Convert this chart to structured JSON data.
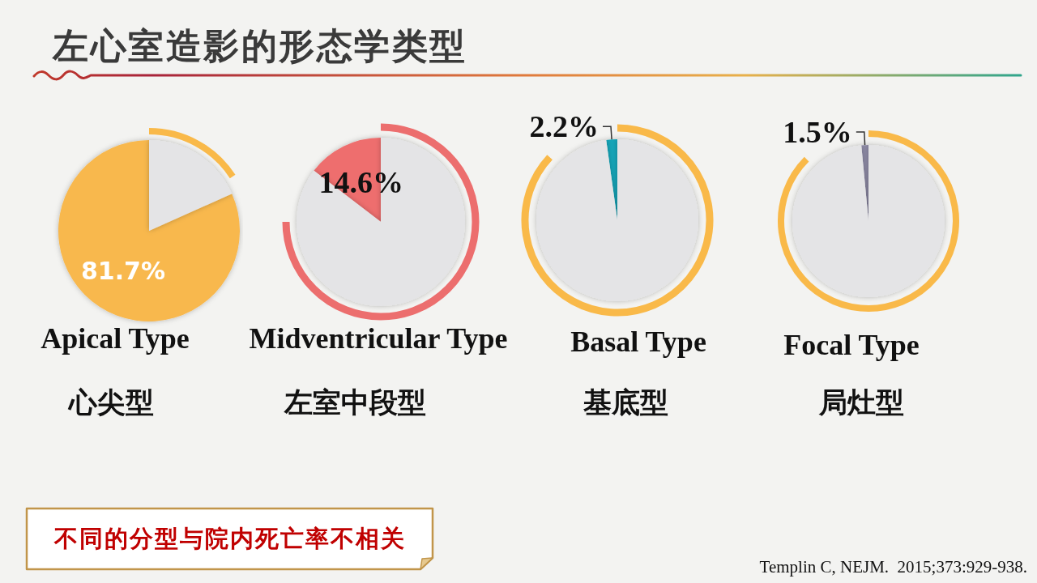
{
  "chart_data": [
    {
      "type": "other",
      "title": "左心室造影的形态学类型"
    },
    {
      "type": "pie",
      "title": "Apical Type",
      "subtitle": "心尖型",
      "categories": [
        null,
        null
      ],
      "values": [
        81.7,
        18.3
      ],
      "colors": [
        "#f8b84e",
        "#e4e4e6"
      ],
      "value_labels": [
        "81.7%",
        null
      ]
    },
    {
      "type": "pie",
      "title": "Midventricular Type",
      "subtitle": "左室中段型",
      "categories": [
        null,
        null
      ],
      "values": [
        14.6,
        85.4
      ],
      "colors": [
        "#ee6e6e",
        "#e4e4e6"
      ],
      "value_labels": [
        "14.6%",
        null
      ]
    },
    {
      "type": "pie",
      "title": "Basal Type",
      "subtitle": "基底型",
      "categories": [
        null,
        null
      ],
      "values": [
        2.2,
        97.8
      ],
      "colors": [
        "#13a5b8",
        "#e4e4e6"
      ],
      "value_labels": [
        "2.2%",
        null
      ]
    },
    {
      "type": "pie",
      "title": "Focal Type",
      "subtitle": "局灶型",
      "categories": [
        null,
        null
      ],
      "values": [
        1.5,
        98.5
      ],
      "colors": [
        "#8e8ba6",
        "#e4e4e6"
      ],
      "value_labels": [
        "1.5%",
        null
      ]
    },
    {
      "type": "other",
      "annotations": [
        "不同的分型与院内死亡率不相关",
        "Templin C, NEJM.  2015;373:929-938."
      ]
    }
  ]
}
